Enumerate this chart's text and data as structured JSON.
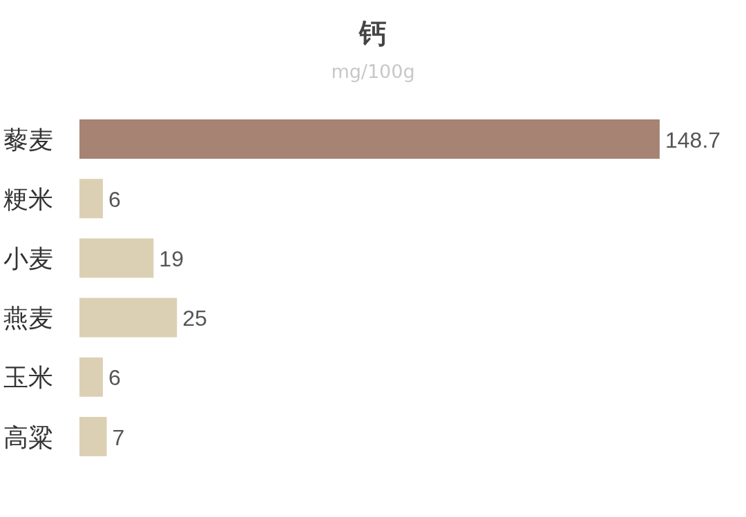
{
  "chart_data": {
    "type": "bar",
    "orientation": "horizontal",
    "title": "钙",
    "subtitle": "mg/100g",
    "categories": [
      "藜麦",
      "粳米",
      "小麦",
      "燕麦",
      "玉米",
      "高粱"
    ],
    "values": [
      148.7,
      6,
      19,
      25,
      6,
      7
    ],
    "colors": [
      "#a68372",
      "#dcd0b4",
      "#dcd0b4",
      "#dcd0b4",
      "#dcd0b4",
      "#dcd0b4"
    ],
    "data_labels": true
  }
}
